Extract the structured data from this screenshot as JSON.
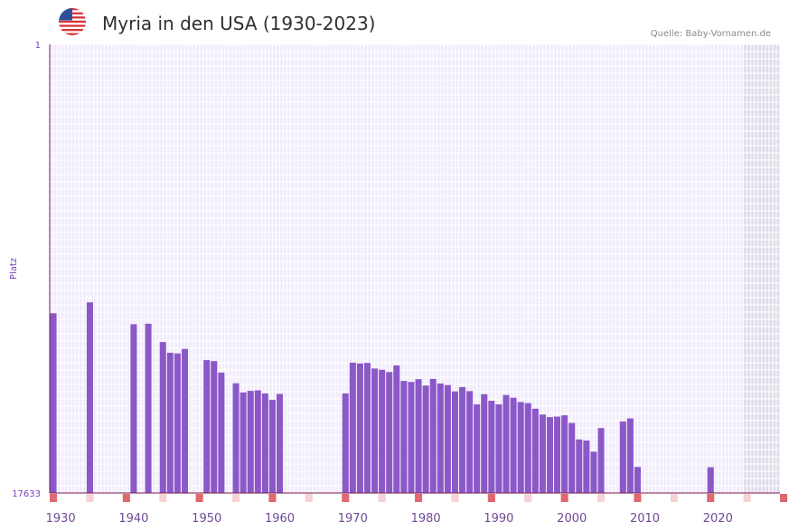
{
  "title": "Myria in den USA (1930-2023)",
  "source": "Quelle: Baby-Vornamen.de",
  "flag_icon": "us-flag-icon",
  "colors": {
    "bar": "#8b58c8",
    "plot_bg": "#f1ecfb",
    "grid": "#ffffff",
    "future_bg": "#e1dcec",
    "axis": "#7a1a4a",
    "marker_strong": "#e06870",
    "marker_light": "#f6d2d6"
  },
  "chart_data": {
    "type": "bar",
    "title": "Myria in den USA (1930-2023)",
    "ylabel": "Platz",
    "xlabel": "",
    "y_reversed": true,
    "ylim": [
      1,
      17633
    ],
    "y_ticks": [
      "1",
      "17633"
    ],
    "x_ticks": [
      "1930",
      "1940",
      "1950",
      "1960",
      "1970",
      "1980",
      "1990",
      "2000",
      "2010",
      "2020"
    ],
    "x_range": [
      1929,
      2029
    ],
    "future_from": 2024,
    "years": [
      1929,
      1934,
      1940,
      1942,
      1944,
      1945,
      1946,
      1947,
      1950,
      1951,
      1952,
      1954,
      1955,
      1956,
      1957,
      1958,
      1959,
      1960,
      1969,
      1970,
      1971,
      1972,
      1973,
      1974,
      1975,
      1976,
      1977,
      1978,
      1979,
      1980,
      1981,
      1982,
      1983,
      1984,
      1985,
      1986,
      1987,
      1988,
      1989,
      1990,
      1991,
      1992,
      1993,
      1994,
      1995,
      1996,
      1997,
      1998,
      1999,
      2000,
      2001,
      2002,
      2003,
      2004,
      2007,
      2008,
      2009,
      2019
    ],
    "values": [
      10570,
      10140,
      11000,
      10980,
      11700,
      12120,
      12150,
      11970,
      12410,
      12450,
      12900,
      13320,
      13680,
      13620,
      13600,
      13720,
      13970,
      13740,
      13720,
      12510,
      12540,
      12520,
      12740,
      12790,
      12880,
      12620,
      13230,
      13270,
      13160,
      13410,
      13150,
      13330,
      13390,
      13640,
      13470,
      13630,
      14150,
      13750,
      14010,
      14150,
      13780,
      13890,
      14060,
      14100,
      14320,
      14550,
      14650,
      14630,
      14580,
      14880,
      15530,
      15570,
      16010,
      15080,
      14820,
      14700,
      16610,
      16620
    ]
  },
  "markers": {
    "strong": [
      1929,
      1939,
      1949,
      1959,
      1969,
      1979,
      1989,
      1999,
      2009,
      2019,
      2029
    ],
    "light": [
      1934,
      1944,
      1954,
      1964,
      1974,
      1984,
      1994,
      2004,
      2014,
      2024
    ]
  }
}
